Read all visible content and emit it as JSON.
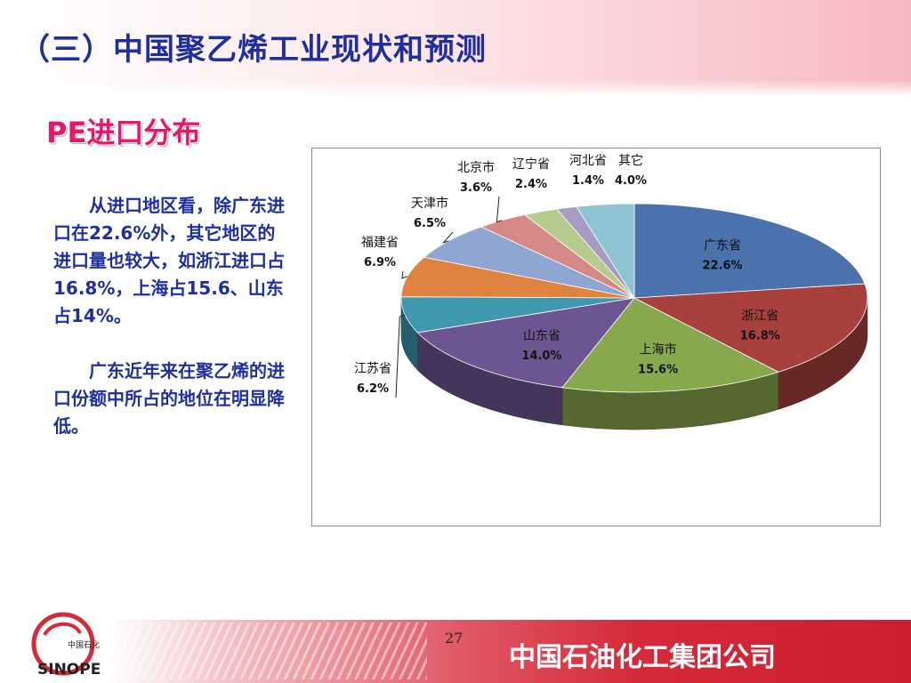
{
  "slide": {
    "title": "（三）中国聚乙烯工业现状和预测",
    "subtitle": "PE进口分布",
    "paragraphs": [
      "从进口地区看，除广东进口在22.6%外，其它地区的进口量也较大，如浙江进口占16.8%，上海占15.6、山东占14%。",
      "广东近年来在聚乙烯的进口份额中所占的地位在明显降低。"
    ],
    "page_number": "27",
    "company": "中国石油化工集团公司",
    "logo_text": "中国石化 SINOPEC"
  },
  "chart_data": {
    "type": "pie",
    "variant": "3d",
    "start": "12 o'clock, clockwise",
    "categories": [
      "广东省",
      "浙江省",
      "上海市",
      "山东省",
      "江苏省",
      "福建省",
      "天津市",
      "北京市",
      "辽宁省",
      "河北省",
      "其它"
    ],
    "values": [
      22.6,
      16.8,
      15.6,
      14.0,
      6.2,
      6.9,
      6.5,
      3.6,
      2.4,
      1.4,
      4.0
    ],
    "value_labels": [
      "22.6%",
      "16.8%",
      "15.6%",
      "14.0%",
      "6.2%",
      "6.9%",
      "6.5%",
      "3.6%",
      "2.4%",
      "1.4%",
      "4.0%"
    ],
    "colors": [
      "#4a72ac",
      "#a8413e",
      "#88a84c",
      "#6d5591",
      "#3f98ae",
      "#de8440",
      "#8ea6d1",
      "#d58a88",
      "#b6cc8e",
      "#a79cbf",
      "#8ec3d3"
    ]
  }
}
